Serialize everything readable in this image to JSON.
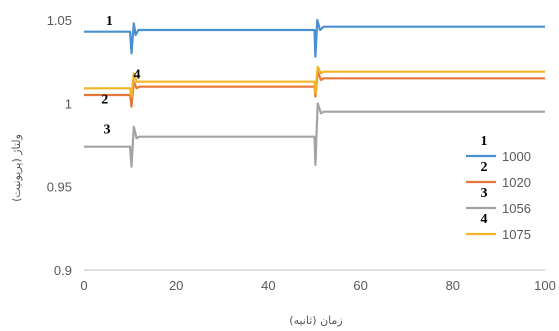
{
  "chart_data": {
    "type": "line",
    "title": "",
    "xlabel": "زمان (ثانیه)",
    "ylabel": "ولتاژ (پریونیت)",
    "xlim": [
      0,
      100
    ],
    "ylim": [
      0.9,
      1.05
    ],
    "x_ticks": [
      "0",
      "20",
      "40",
      "60",
      "80",
      "100"
    ],
    "y_ticks": [
      "0.9",
      "0.95",
      "1",
      "1.05"
    ],
    "grid": false,
    "legend_position": "right",
    "series": [
      {
        "name": "1000",
        "number": "1",
        "color": "#4a8fcf",
        "points": [
          [
            0,
            1.043
          ],
          [
            10,
            1.043
          ],
          [
            10.3,
            1.03
          ],
          [
            10.8,
            1.048
          ],
          [
            11.2,
            1.041
          ],
          [
            11.8,
            1.044
          ],
          [
            50,
            1.044
          ],
          [
            50.2,
            1.028
          ],
          [
            50.6,
            1.05
          ],
          [
            51.2,
            1.044
          ],
          [
            52,
            1.046
          ],
          [
            100,
            1.046
          ]
        ]
      },
      {
        "name": "1020",
        "number": "2",
        "color": "#e8763a",
        "points": [
          [
            0,
            1.005
          ],
          [
            10,
            1.005
          ],
          [
            10.3,
            0.998
          ],
          [
            10.8,
            1.013
          ],
          [
            11.4,
            1.009
          ],
          [
            12,
            1.01
          ],
          [
            50,
            1.01
          ],
          [
            50.2,
            1.004
          ],
          [
            50.7,
            1.019
          ],
          [
            51.4,
            1.014
          ],
          [
            52,
            1.015
          ],
          [
            100,
            1.015
          ]
        ]
      },
      {
        "name": "1056",
        "number": "3",
        "color": "#a3a3a3",
        "points": [
          [
            0,
            0.974
          ],
          [
            10,
            0.974
          ],
          [
            10.3,
            0.962
          ],
          [
            10.8,
            0.986
          ],
          [
            11.4,
            0.979
          ],
          [
            12,
            0.98
          ],
          [
            50,
            0.98
          ],
          [
            50.2,
            0.963
          ],
          [
            50.7,
            1.0
          ],
          [
            51.4,
            0.994
          ],
          [
            52,
            0.995
          ],
          [
            100,
            0.995
          ]
        ]
      },
      {
        "name": "1075",
        "number": "4",
        "color": "#f2b424",
        "points": [
          [
            0,
            1.009
          ],
          [
            10,
            1.009
          ],
          [
            10.3,
            1.004
          ],
          [
            10.8,
            1.018
          ],
          [
            11.4,
            1.013
          ],
          [
            12,
            1.013
          ],
          [
            50,
            1.013
          ],
          [
            50.2,
            1.006
          ],
          [
            50.7,
            1.022
          ],
          [
            51.4,
            1.018
          ],
          [
            52,
            1.019
          ],
          [
            100,
            1.019
          ]
        ]
      }
    ],
    "curve_labels": [
      {
        "text": "1",
        "x": 5.5,
        "y": 1.047
      },
      {
        "text": "4",
        "x": 11.5,
        "y": 1.015
      },
      {
        "text": "2",
        "x": 4.5,
        "y": 1.0
      },
      {
        "text": "3",
        "x": 5.0,
        "y": 0.982
      }
    ]
  }
}
